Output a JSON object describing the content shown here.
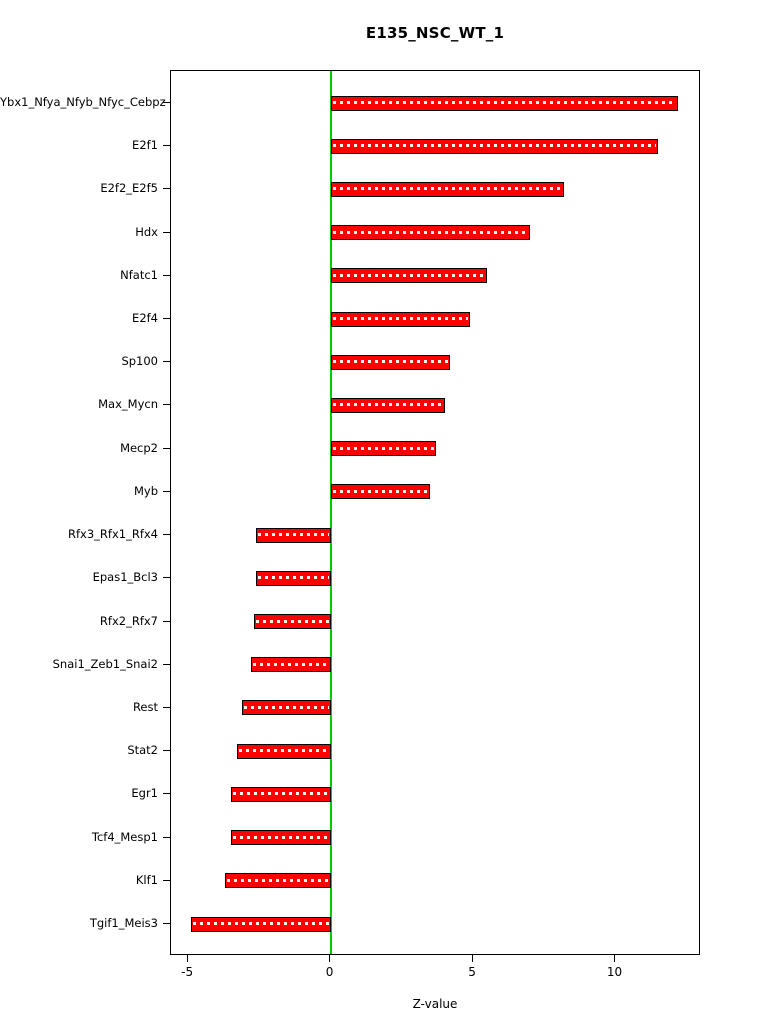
{
  "chart_data": {
    "type": "bar",
    "orientation": "horizontal",
    "title": "E135_NSC_WT_1",
    "xlabel": "Z-value",
    "categories": [
      "Ybx1_Nfya_Nfyb_Nfyc_Cebpz",
      "E2f1",
      "E2f2_E2f5",
      "Hdx",
      "Nfatc1",
      "E2f4",
      "Sp100",
      "Max_Mycn",
      "Mecp2",
      "Myb",
      "Rfx3_Rfx1_Rfx4",
      "Epas1_Bcl3",
      "Rfx2_Rfx7",
      "Snai1_Zeb1_Snai2",
      "Rest",
      "Stat2",
      "Egr1",
      "Tcf4_Mesp1",
      "Klf1",
      "Tgif1_Meis3"
    ],
    "values": [
      12.2,
      11.5,
      8.2,
      7.0,
      5.5,
      4.9,
      4.2,
      4.0,
      3.7,
      3.5,
      -2.6,
      -2.6,
      -2.7,
      -2.8,
      -3.1,
      -3.3,
      -3.5,
      -3.5,
      -3.7,
      -4.9
    ],
    "xlim": [
      -5.6,
      13.0
    ],
    "x_ticks": [
      -5,
      0,
      5,
      10
    ],
    "x_tick_labels": [
      "-5",
      "0",
      "5",
      "10"
    ],
    "grid": false,
    "legend": "none",
    "bar_color": "#ff0000",
    "bar_border_color": "#000000",
    "zero_line_color": "#00cd00",
    "background": "#ffffff"
  }
}
